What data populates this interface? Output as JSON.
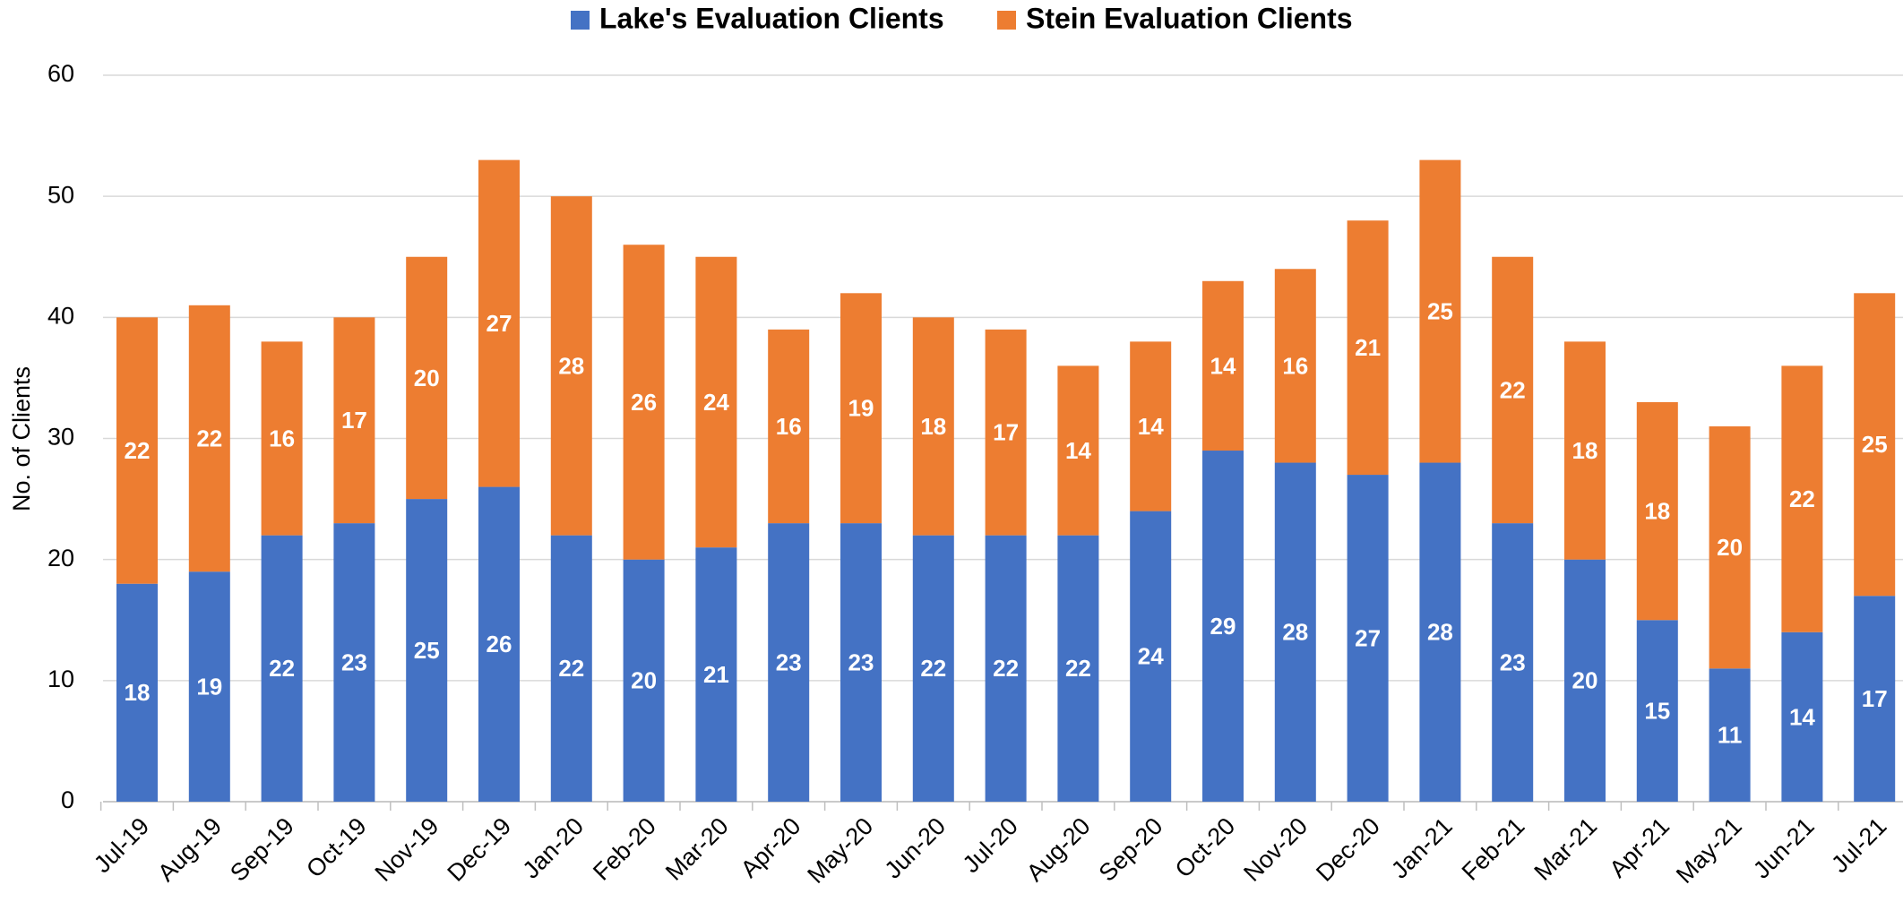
{
  "chart_data": {
    "type": "stacked_bar",
    "y_label": "No. of Clients",
    "categories": [
      "Jul-19",
      "Aug-19",
      "Sep-19",
      "Oct-19",
      "Nov-19",
      "Dec-19",
      "Jan-20",
      "Feb-20",
      "Mar-20",
      "Apr-20",
      "May-20",
      "Jun-20",
      "Jul-20",
      "Aug-20",
      "Sep-20",
      "Oct-20",
      "Nov-20",
      "Dec-20",
      "Jan-21",
      "Feb-21",
      "Mar-21",
      "Apr-21",
      "May-21",
      "Jun-21",
      "Jul-21"
    ],
    "series": [
      {
        "name": "Lake's Evaluation Clients",
        "color": "#4472c4",
        "values": [
          18,
          19,
          22,
          23,
          25,
          26,
          22,
          20,
          21,
          23,
          23,
          22,
          22,
          22,
          24,
          29,
          28,
          27,
          28,
          23,
          20,
          15,
          11,
          14,
          17
        ]
      },
      {
        "name": "Stein Evaluation Clients",
        "color": "#ed7d31",
        "values": [
          22,
          22,
          16,
          17,
          20,
          27,
          28,
          26,
          24,
          16,
          19,
          18,
          17,
          14,
          14,
          14,
          16,
          21,
          25,
          22,
          18,
          18,
          20,
          22,
          25
        ]
      }
    ],
    "ylim": [
      0,
      60
    ],
    "yticks": [
      0,
      10,
      20,
      30,
      40,
      50,
      60
    ],
    "grid": true,
    "legend": "top"
  }
}
